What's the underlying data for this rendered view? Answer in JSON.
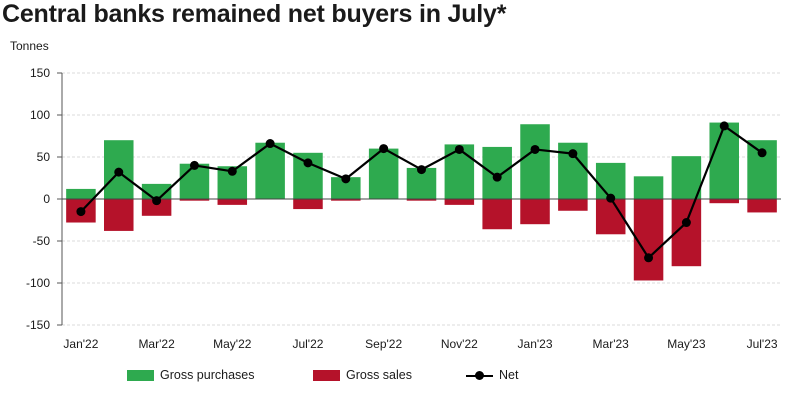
{
  "title": "Central banks remained net buyers in July*",
  "chart_data": {
    "type": "bar",
    "ylabel": "Tonnes",
    "ylim": [
      -150,
      150
    ],
    "yticks": [
      150,
      100,
      50,
      0,
      -50,
      -100,
      -150
    ],
    "grid": true,
    "categories": [
      "Jan'22",
      "Feb'22",
      "Mar'22",
      "Apr'22",
      "May'22",
      "Jun'22",
      "Jul'22",
      "Aug'22",
      "Sep'22",
      "Oct'22",
      "Nov'22",
      "Dec'22",
      "Jan'23",
      "Feb'23",
      "Mar'23",
      "Apr'23",
      "May'23",
      "Jun'23",
      "Jul'23"
    ],
    "tick_labels": [
      "Jan'22",
      "Mar'22",
      "May'22",
      "Jul'22",
      "Sep'22",
      "Nov'22",
      "Jan'23",
      "Mar'23",
      "May'23",
      "Jul'23"
    ],
    "series": [
      {
        "name": "Gross purchases",
        "type": "bar",
        "color": "#2eaa4f",
        "values": [
          12,
          70,
          18,
          42,
          39,
          67,
          55,
          26,
          60,
          37,
          65,
          62,
          89,
          67,
          43,
          27,
          51,
          91,
          70
        ]
      },
      {
        "name": "Gross sales",
        "type": "bar",
        "color": "#b5122a",
        "values": [
          -28,
          -38,
          -20,
          -2,
          -7,
          0,
          -12,
          -2,
          0,
          -2,
          -7,
          -36,
          -30,
          -14,
          -42,
          -97,
          -80,
          -5,
          -16
        ]
      },
      {
        "name": "Net",
        "type": "line",
        "color": "#000000",
        "values": [
          -15,
          32,
          -2,
          40,
          33,
          66,
          43,
          24,
          60,
          35,
          59,
          26,
          59,
          54,
          1,
          -70,
          -28,
          87,
          55
        ]
      }
    ],
    "legend_position": "bottom"
  }
}
